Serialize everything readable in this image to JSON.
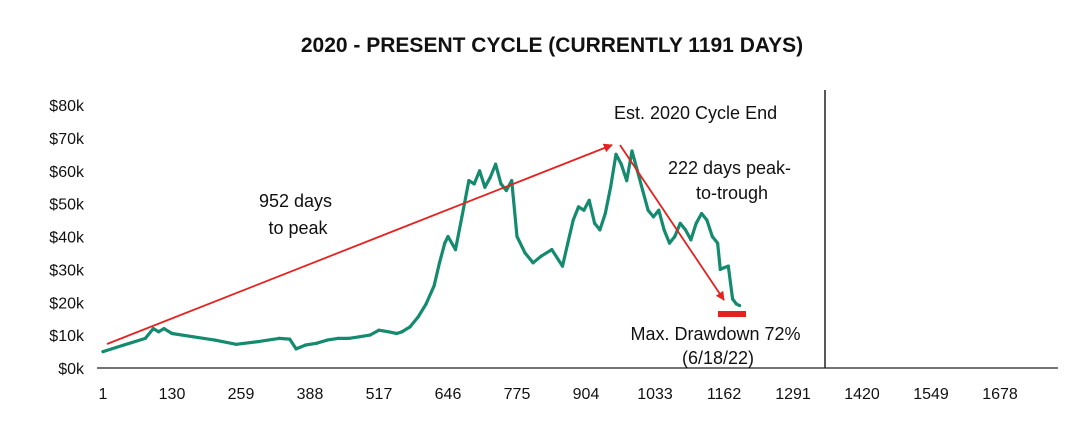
{
  "chart_data": {
    "type": "line",
    "title": "2020 - PRESENT CYCLE (CURRENTLY 1191 DAYS)",
    "xlabel": "",
    "ylabel": "",
    "xlim": [
      1,
      1791
    ],
    "ylim": [
      0,
      80000
    ],
    "x_ticks": [
      "1",
      "130",
      "259",
      "388",
      "517",
      "646",
      "775",
      "904",
      "1033",
      "1162",
      "1291",
      "1420",
      "1549",
      "1678"
    ],
    "y_ticks": [
      "$0k",
      "$10k",
      "$20k",
      "$30k",
      "$40k",
      "$50k",
      "$60k",
      "$70k",
      "$80k"
    ],
    "grid": false,
    "series": [
      {
        "color": "#148a6f",
        "x": [
          1,
          40,
          80,
          95,
          105,
          115,
          130,
          170,
          210,
          250,
          290,
          330,
          350,
          362,
          380,
          400,
          420,
          440,
          460,
          480,
          500,
          517,
          535,
          550,
          560,
          575,
          590,
          605,
          620,
          630,
          640,
          646,
          660,
          672,
          685,
          695,
          705,
          715,
          725,
          735,
          745,
          755,
          765,
          775,
          790,
          805,
          820,
          840,
          860,
          870,
          880,
          890,
          900,
          910,
          920,
          930,
          940,
          950,
          960,
          970,
          980,
          990,
          1000,
          1010,
          1020,
          1030,
          1040,
          1050,
          1060,
          1070,
          1080,
          1090,
          1100,
          1110,
          1120,
          1130,
          1140,
          1150,
          1155,
          1162,
          1170,
          1178,
          1185,
          1191
        ],
        "values": [
          5000,
          7000,
          9000,
          12000,
          11000,
          12000,
          10500,
          9500,
          8500,
          7200,
          8000,
          9000,
          8800,
          5800,
          7000,
          7500,
          8500,
          9000,
          9000,
          9500,
          10000,
          11500,
          11000,
          10500,
          11000,
          12500,
          15500,
          19500,
          25000,
          32000,
          38000,
          40000,
          36000,
          46000,
          57000,
          56000,
          60000,
          55000,
          58000,
          62000,
          56000,
          54000,
          57000,
          40000,
          35000,
          32000,
          34000,
          36000,
          31000,
          38000,
          45000,
          49000,
          48000,
          51000,
          44000,
          42000,
          47000,
          55000,
          65000,
          62000,
          57000,
          66000,
          60000,
          54000,
          48000,
          46000,
          48000,
          42000,
          38000,
          40000,
          44000,
          42000,
          39000,
          44000,
          47000,
          45000,
          40000,
          38000,
          30000,
          30500,
          31000,
          21000,
          19500,
          19000
        ]
      }
    ],
    "annotations": {
      "days_to_peak": [
        "952 days",
        "to peak"
      ],
      "peak_to_trough": [
        "222 days peak-",
        "to-trough"
      ],
      "cycle_end": "Est. 2020 Cycle End",
      "drawdown": [
        "Max. Drawdown 72%",
        "(6/18/22)"
      ]
    },
    "colors": {
      "line": "#148a6f",
      "arrow": "#e5221f",
      "marker": "#e5221f",
      "axis": "#222222"
    }
  }
}
